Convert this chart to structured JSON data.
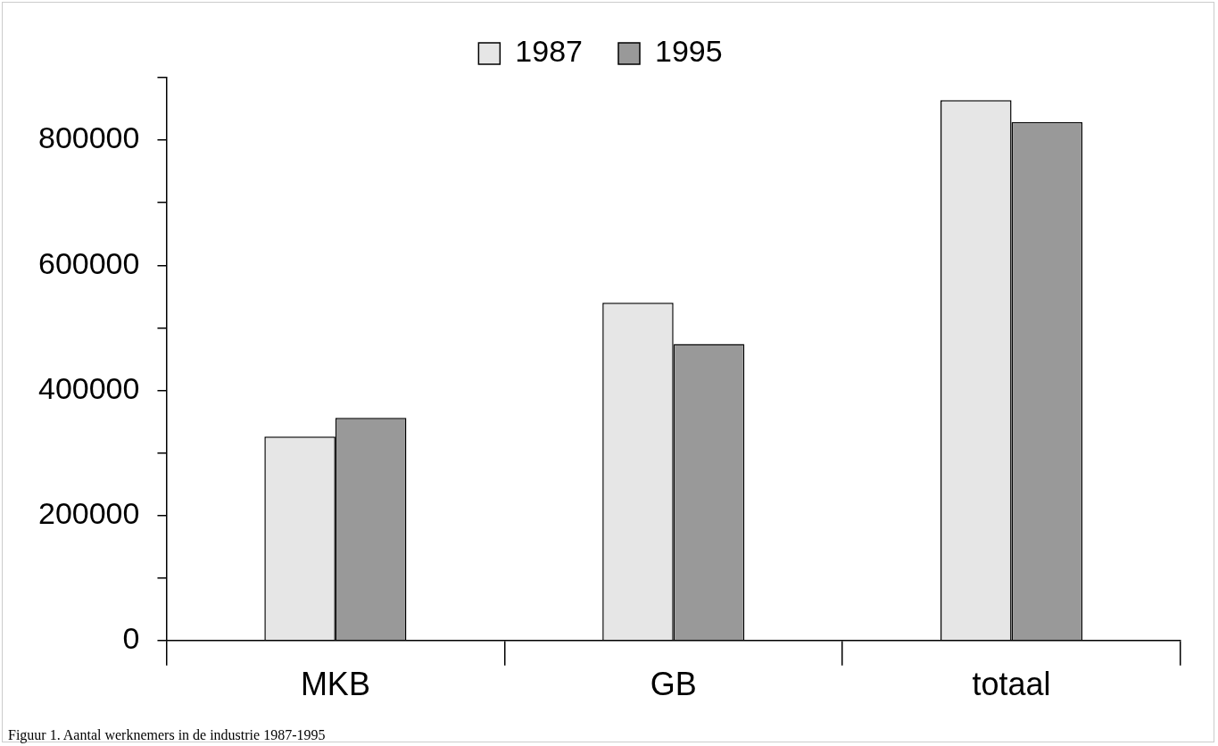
{
  "chart_data": {
    "type": "bar",
    "categories": [
      "MKB",
      "GB",
      "totaal"
    ],
    "series": [
      {
        "name": "1987",
        "color": "#e6e6e6",
        "values": [
          326000,
          540000,
          864000
        ]
      },
      {
        "name": "1995",
        "color": "#999999",
        "values": [
          356000,
          474000,
          829000
        ]
      }
    ],
    "ylim": [
      0,
      900000
    ],
    "yticks": [
      0,
      {
        "value": 100000,
        "label": null
      },
      200000,
      {
        "value": 300000,
        "label": null
      },
      400000,
      {
        "value": 500000,
        "label": null
      },
      600000,
      {
        "value": 700000,
        "label": null
      },
      800000,
      {
        "value": 900000,
        "label": null
      }
    ],
    "grid": false,
    "legend": "top",
    "annotations": [
      "Figuur 1. Aantal werknemers in de industrie 1987-1995"
    ]
  }
}
